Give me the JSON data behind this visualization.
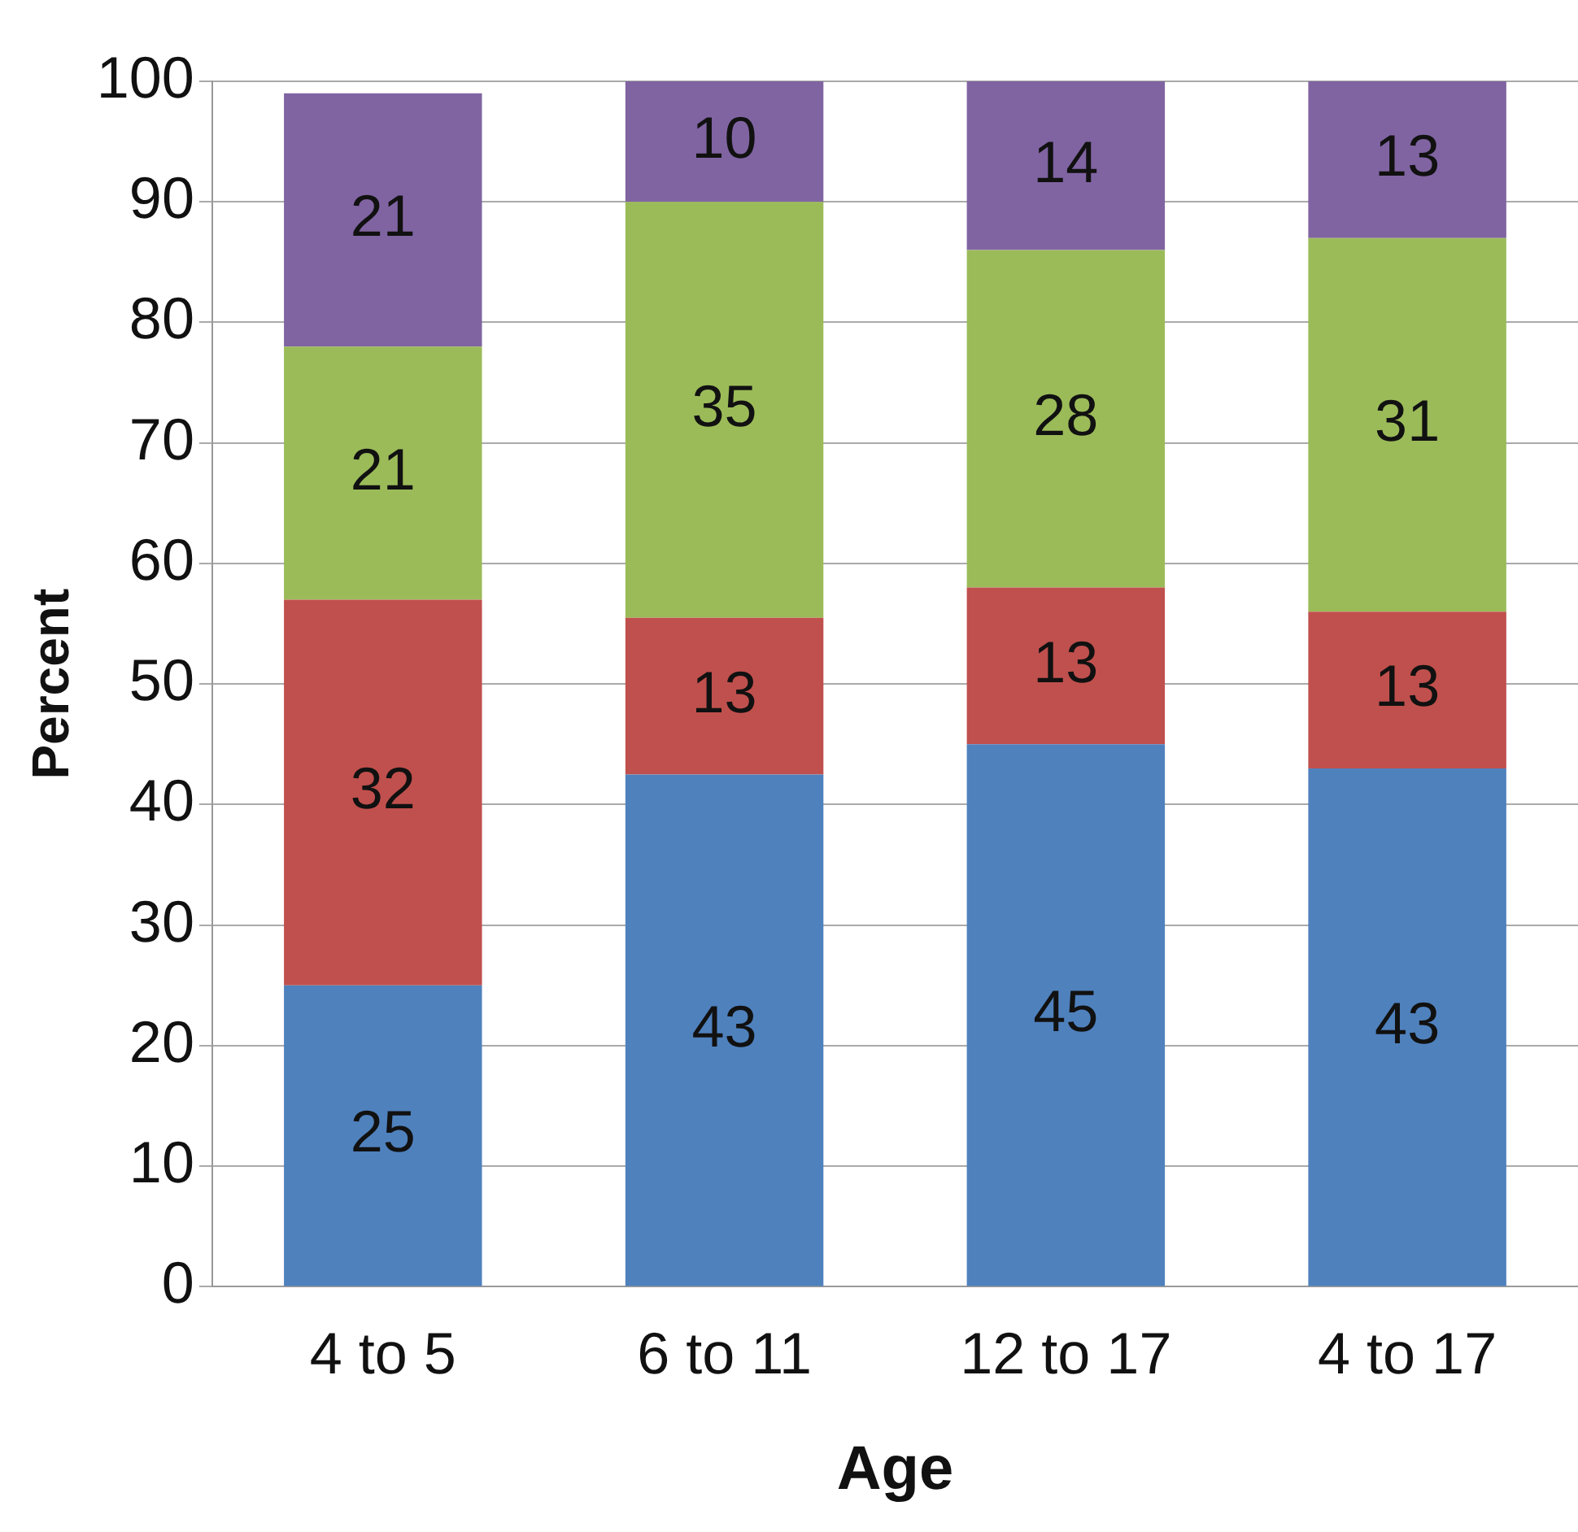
{
  "chart_data": {
    "type": "bar",
    "xlabel": "Age",
    "ylabel": "Percent",
    "categories": [
      "4 to 5",
      "6 to 11",
      "12 to 17",
      "4 to 17"
    ],
    "series": [
      {
        "color": "#4f81bd",
        "values": [
          25,
          42.5,
          45,
          43
        ],
        "value_labels": [
          "25",
          "43",
          "45",
          "43"
        ]
      },
      {
        "color": "#c0504d",
        "values": [
          32,
          13,
          13,
          13
        ],
        "value_labels": [
          "32",
          "13",
          "13",
          "13"
        ]
      },
      {
        "color": "#9bbb59",
        "values": [
          21,
          34.5,
          28,
          31
        ],
        "value_labels": [
          "21",
          "35",
          "28",
          "31"
        ]
      },
      {
        "color": "#8064a2",
        "values": [
          21,
          10,
          14,
          13
        ],
        "value_labels": [
          "21",
          "10",
          "14",
          "13"
        ]
      }
    ],
    "stacked": true,
    "grid": "y",
    "ylim": [
      0,
      100
    ],
    "yticks": [
      0,
      10,
      20,
      30,
      40,
      50,
      60,
      70,
      80,
      90,
      100
    ]
  }
}
